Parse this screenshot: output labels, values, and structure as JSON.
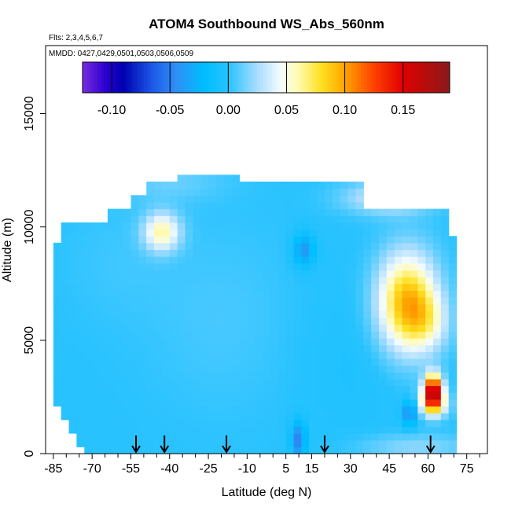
{
  "chart_data": {
    "type": "heatmap",
    "title": "ATOM4 Southbound WS_Abs_560nm",
    "flights_label": "Flts: 2,3,4,5,6,7",
    "dates_label": "MMDD: 0427,0429,0501,0503,0506,0509",
    "xlabel": "Latitude (deg N)",
    "ylabel": "Altitude (m)",
    "xlim": [
      -88,
      83
    ],
    "ylim": [
      0,
      18000
    ],
    "x_ticks": [
      -85,
      -70,
      -55,
      -40,
      -25,
      -10,
      5,
      15,
      30,
      45,
      60,
      75
    ],
    "x_tick_labels": [
      "-85",
      "-70",
      "-55",
      "-40",
      "-25",
      "-10",
      "5",
      "15",
      "30",
      "45",
      "60",
      "75"
    ],
    "y_ticks": [
      0,
      5000,
      10000,
      15000
    ],
    "y_tick_labels": [
      "0",
      "5000",
      "10000",
      "15000"
    ],
    "colorbar": {
      "range": [
        -0.125,
        0.19
      ],
      "ticks": [
        -0.1,
        -0.05,
        0.0,
        0.05,
        0.1,
        0.15
      ],
      "tick_labels": [
        "-0.10",
        "-0.05",
        "0.00",
        "0.05",
        "0.10",
        "0.15"
      ],
      "colors": [
        {
          "v": -0.125,
          "c": "#7a2be0"
        },
        {
          "v": -0.105,
          "c": "#2a00d0"
        },
        {
          "v": -0.09,
          "c": "#0000b0"
        },
        {
          "v": -0.065,
          "c": "#1c5ae8"
        },
        {
          "v": -0.045,
          "c": "#2e8ff5"
        },
        {
          "v": -0.02,
          "c": "#00bfff"
        },
        {
          "v": 0.0,
          "c": "#27c2ff"
        },
        {
          "v": 0.025,
          "c": "#a9ddff"
        },
        {
          "v": 0.045,
          "c": "#f4fbff"
        },
        {
          "v": 0.06,
          "c": "#fffbb0"
        },
        {
          "v": 0.08,
          "c": "#ffe020"
        },
        {
          "v": 0.1,
          "c": "#ffa500"
        },
        {
          "v": 0.125,
          "c": "#ff4000"
        },
        {
          "v": 0.15,
          "c": "#e00000"
        },
        {
          "v": 0.19,
          "c": "#8b1a1a"
        }
      ]
    },
    "background_value": 0.0,
    "envelope": [
      {
        "alt": 0,
        "lat_min": -73,
        "lat_max": 72
      },
      {
        "alt": 1000,
        "lat_min": -78,
        "lat_max": 72
      },
      {
        "alt": 2000,
        "lat_min": -83,
        "lat_max": 72
      },
      {
        "alt": 3000,
        "lat_min": -86,
        "lat_max": 72
      },
      {
        "alt": 5000,
        "lat_min": -85,
        "lat_max": 72
      },
      {
        "alt": 7000,
        "lat_min": -84,
        "lat_max": 71
      },
      {
        "alt": 9000,
        "lat_min": -84,
        "lat_max": 70
      },
      {
        "alt": 10200,
        "lat_min": -80,
        "lat_max": 69
      },
      {
        "alt": 10900,
        "lat_min": -64,
        "lat_max": 68
      },
      {
        "alt": 11500,
        "lat_min": -55,
        "lat_max": 35
      },
      {
        "alt": 12000,
        "lat_min": -50,
        "lat_max": 35
      },
      {
        "alt": 12400,
        "lat_min": -38,
        "lat_max": -14
      }
    ],
    "features": [
      {
        "lat": 52,
        "alt": 6700,
        "sigma_lat": 8,
        "sigma_alt": 1500,
        "value": 0.095
      },
      {
        "lat": 60,
        "alt": 5800,
        "sigma_lat": 6,
        "sigma_alt": 900,
        "value": 0.03
      },
      {
        "lat": 62,
        "alt": 2800,
        "sigma_lat": 2.5,
        "sigma_alt": 500,
        "value": 0.16
      },
      {
        "lat": 62,
        "alt": 2200,
        "sigma_lat": 4,
        "sigma_alt": 400,
        "value": 0.065
      },
      {
        "lat": -43,
        "alt": 9800,
        "sigma_lat": 5,
        "sigma_alt": 600,
        "value": 0.06
      },
      {
        "lat": 45,
        "alt": 11300,
        "sigma_lat": 12,
        "sigma_alt": 500,
        "value": 0.04
      },
      {
        "lat": 10,
        "alt": 600,
        "sigma_lat": 2,
        "sigma_alt": 600,
        "value": -0.05
      },
      {
        "lat": 53,
        "alt": 1800,
        "sigma_lat": 2,
        "sigma_alt": 400,
        "value": -0.05
      },
      {
        "lat": 12,
        "alt": 9000,
        "sigma_lat": 3,
        "sigma_alt": 500,
        "value": -0.04
      },
      {
        "lat": -20,
        "alt": 6000,
        "sigma_lat": 20,
        "sigma_alt": 3000,
        "value": 0.006
      },
      {
        "lat": 30,
        "alt": 4000,
        "sigma_lat": 15,
        "sigma_alt": 2500,
        "value": -0.004
      },
      {
        "lat": -60,
        "alt": 8500,
        "sigma_lat": 15,
        "sigma_alt": 2000,
        "value": 0.004
      },
      {
        "lat": 55,
        "alt": 300,
        "sigma_lat": 15,
        "sigma_alt": 400,
        "value": 0.02
      },
      {
        "lat": -40,
        "alt": 12000,
        "sigma_lat": 15,
        "sigma_alt": 600,
        "value": 0.012
      }
    ],
    "arrows_lat": [
      -53,
      -42,
      -18,
      20,
      61
    ]
  }
}
